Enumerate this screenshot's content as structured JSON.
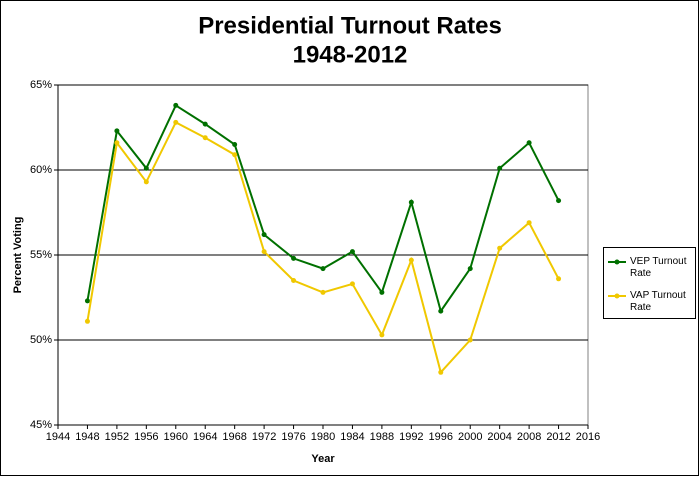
{
  "chart_data": {
    "type": "line",
    "title": "Presidential Turnout Rates",
    "subtitle": "1948-2012",
    "x_label": "Year",
    "y_label": "Percent Voting",
    "x": [
      1948,
      1952,
      1956,
      1960,
      1964,
      1968,
      1972,
      1976,
      1980,
      1984,
      1988,
      1992,
      1996,
      2000,
      2004,
      2008,
      2012
    ],
    "series": [
      {
        "name": "VEP Turnout Rate",
        "color": "#007000",
        "values": [
          52.3,
          62.3,
          60.1,
          63.8,
          62.7,
          61.5,
          56.2,
          54.8,
          54.2,
          55.2,
          52.8,
          58.1,
          51.7,
          54.2,
          60.1,
          61.6,
          58.2
        ]
      },
      {
        "name": "VAP Turnout Rate",
        "color": "#f0c800",
        "values": [
          51.1,
          61.6,
          59.3,
          62.8,
          61.9,
          60.9,
          55.2,
          53.5,
          52.8,
          53.3,
          50.3,
          54.7,
          48.1,
          50.0,
          55.4,
          56.9,
          53.6
        ]
      }
    ],
    "xlim": [
      1944,
      2016
    ],
    "xticks": [
      1944,
      1948,
      1952,
      1956,
      1960,
      1964,
      1968,
      1972,
      1976,
      1980,
      1984,
      1988,
      1992,
      1996,
      2000,
      2004,
      2008,
      2012,
      2016
    ],
    "ylim": [
      45,
      65
    ],
    "yticks": [
      {
        "value": 45,
        "label": "45%"
      },
      {
        "value": 50,
        "label": "50%"
      },
      {
        "value": 55,
        "label": "55%"
      },
      {
        "value": 60,
        "label": "60%"
      },
      {
        "value": 65,
        "label": "65%"
      }
    ],
    "grid": true,
    "legend": "right"
  }
}
